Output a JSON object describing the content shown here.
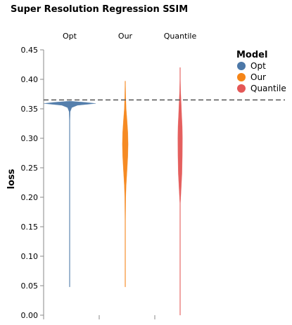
{
  "chart_data": {
    "type": "violin",
    "title": "Super Resolution Regression SSIM",
    "ylabel": "loss",
    "xlabel": "",
    "ylim": [
      0,
      0.45
    ],
    "yticks": [
      "0.00",
      "0.05",
      "0.10",
      "0.15",
      "0.20",
      "0.25",
      "0.30",
      "0.35",
      "0.40",
      "0.45"
    ],
    "ytick_values": [
      0,
      0.05,
      0.1,
      0.15,
      0.2,
      0.25,
      0.3,
      0.35,
      0.4,
      0.45
    ],
    "reference_line": 0.365,
    "grid": false,
    "legend": {
      "title": "Model",
      "placement": "top-right",
      "entries": [
        {
          "label": "Opt",
          "color": "#4c78a8"
        },
        {
          "label": "Our",
          "color": "#f58518"
        },
        {
          "label": "Quantile",
          "color": "#e45756"
        }
      ]
    },
    "series": [
      {
        "name": "Opt",
        "color": "#4c78a8",
        "range": [
          0.048,
          0.363
        ],
        "density": [
          [
            0.048,
            0.005
          ],
          [
            0.06,
            0.003
          ],
          [
            0.09,
            0.004
          ],
          [
            0.1,
            0.005
          ],
          [
            0.15,
            0.003
          ],
          [
            0.2,
            0.003
          ],
          [
            0.24,
            0.006
          ],
          [
            0.25,
            0.004
          ],
          [
            0.3,
            0.006
          ],
          [
            0.33,
            0.008
          ],
          [
            0.345,
            0.02
          ],
          [
            0.352,
            0.08
          ],
          [
            0.356,
            0.3
          ],
          [
            0.359,
            1.0
          ],
          [
            0.361,
            0.6
          ],
          [
            0.363,
            0.0
          ]
        ]
      },
      {
        "name": "Our",
        "color": "#f58518",
        "range": [
          0.048,
          0.397
        ],
        "density": [
          [
            0.048,
            0.006
          ],
          [
            0.08,
            0.006
          ],
          [
            0.12,
            0.008
          ],
          [
            0.16,
            0.01
          ],
          [
            0.2,
            0.018
          ],
          [
            0.22,
            0.035
          ],
          [
            0.25,
            0.075
          ],
          [
            0.27,
            0.1
          ],
          [
            0.29,
            0.11
          ],
          [
            0.31,
            0.1
          ],
          [
            0.33,
            0.07
          ],
          [
            0.35,
            0.035
          ],
          [
            0.37,
            0.02
          ],
          [
            0.39,
            0.01
          ],
          [
            0.397,
            0.0
          ]
        ]
      },
      {
        "name": "Quantile",
        "color": "#e45756",
        "range": [
          0.0,
          0.42
        ],
        "density": [
          [
            0.0,
            0.004
          ],
          [
            0.05,
            0.004
          ],
          [
            0.1,
            0.005
          ],
          [
            0.15,
            0.006
          ],
          [
            0.19,
            0.012
          ],
          [
            0.21,
            0.035
          ],
          [
            0.24,
            0.07
          ],
          [
            0.27,
            0.085
          ],
          [
            0.3,
            0.09
          ],
          [
            0.32,
            0.08
          ],
          [
            0.34,
            0.06
          ],
          [
            0.36,
            0.04
          ],
          [
            0.38,
            0.02
          ],
          [
            0.4,
            0.01
          ],
          [
            0.42,
            0.0
          ]
        ]
      }
    ]
  }
}
